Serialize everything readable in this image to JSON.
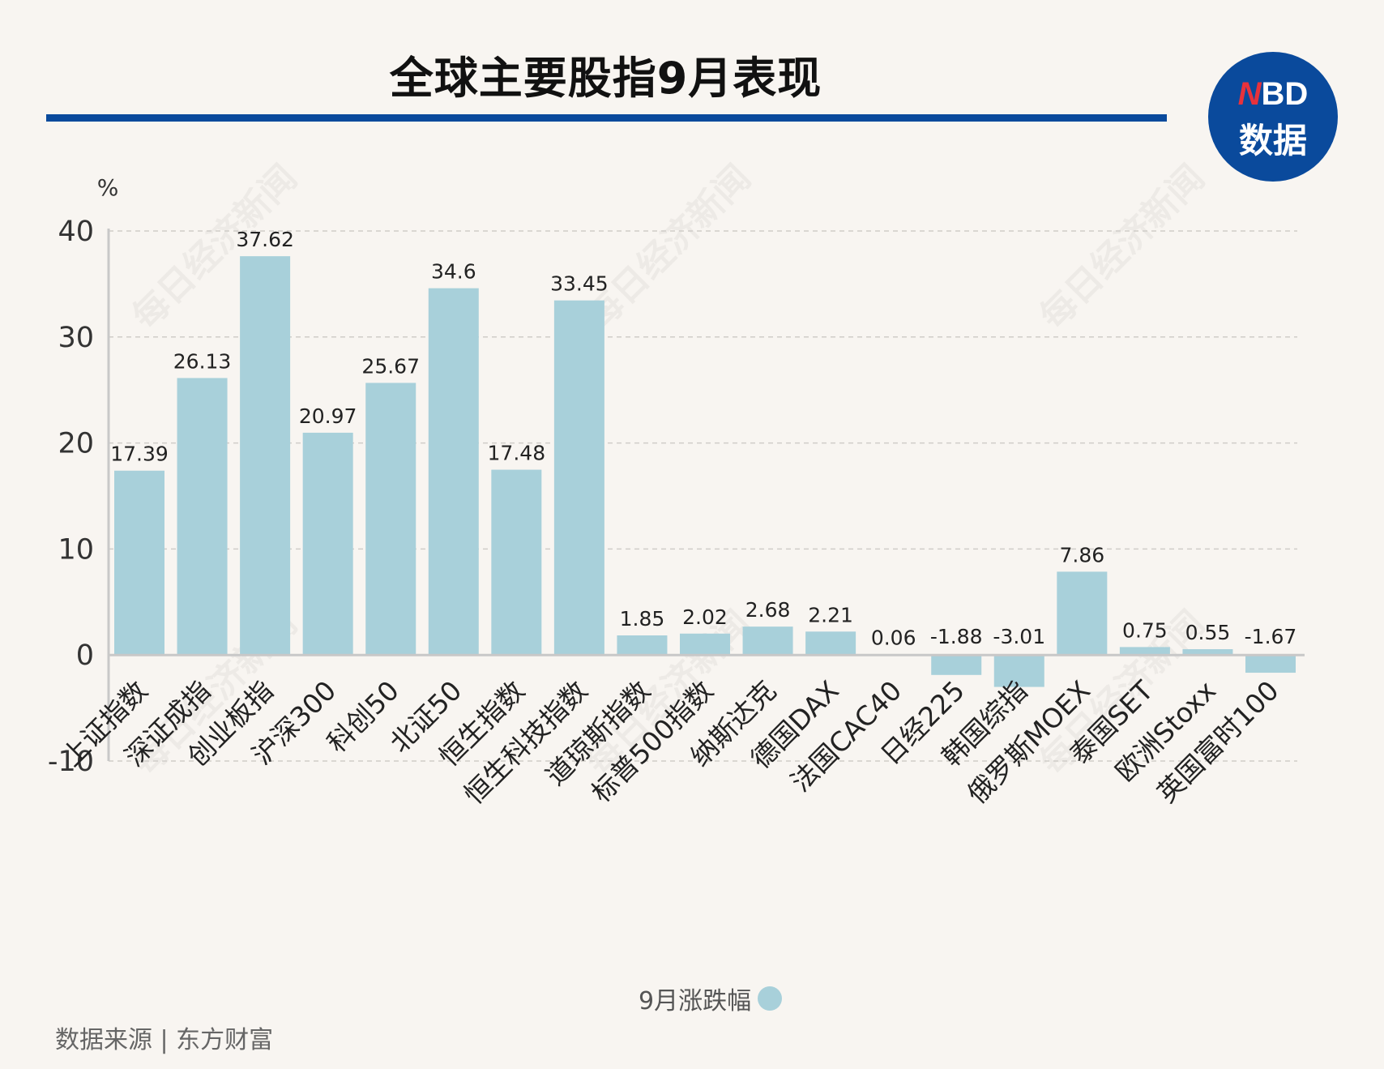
{
  "title": "全球主要股指9月表现",
  "logo": {
    "top": "NBD",
    "bottom": "数据"
  },
  "watermark": "每日经济新闻",
  "source": "数据来源 | 东方财富",
  "colors": {
    "bar": "#a8d0da",
    "accent": "#0a4a9c",
    "background": "#f8f5f1"
  },
  "chart_data": {
    "type": "bar",
    "title": "全球主要股指9月表现",
    "ylabel": "%",
    "ylim": [
      -10,
      40
    ],
    "yticks": [
      40,
      30,
      20,
      10,
      0,
      -10
    ],
    "grid": true,
    "legend": "bottom",
    "series_name": "9月涨跌幅",
    "categories": [
      "上证指数",
      "深证成指",
      "创业板指",
      "沪深300",
      "科创50",
      "北证50",
      "恒生指数",
      "恒生科技指数",
      "道琼斯指数",
      "标普500指数",
      "纳斯达克",
      "德国DAX",
      "法国CAC40",
      "日经225",
      "韩国综指",
      "俄罗斯MOEX",
      "泰国SET",
      "欧洲Stoxx",
      "英国富时100"
    ],
    "values": [
      17.39,
      26.13,
      37.62,
      20.97,
      25.67,
      34.6,
      17.48,
      33.45,
      1.85,
      2.02,
      2.68,
      2.21,
      0.06,
      -1.88,
      -3.01,
      7.86,
      0.75,
      0.55,
      -1.67
    ],
    "labels": [
      "17.39",
      "26.13",
      "37.62",
      "20.97",
      "25.67",
      "34.6",
      "17.48",
      "33.45",
      "1.85",
      "2.02",
      "2.68",
      "2.21",
      "0.06",
      "-1.88",
      "-3.01",
      "7.86",
      "0.75",
      "0.55",
      "-1.67"
    ]
  }
}
